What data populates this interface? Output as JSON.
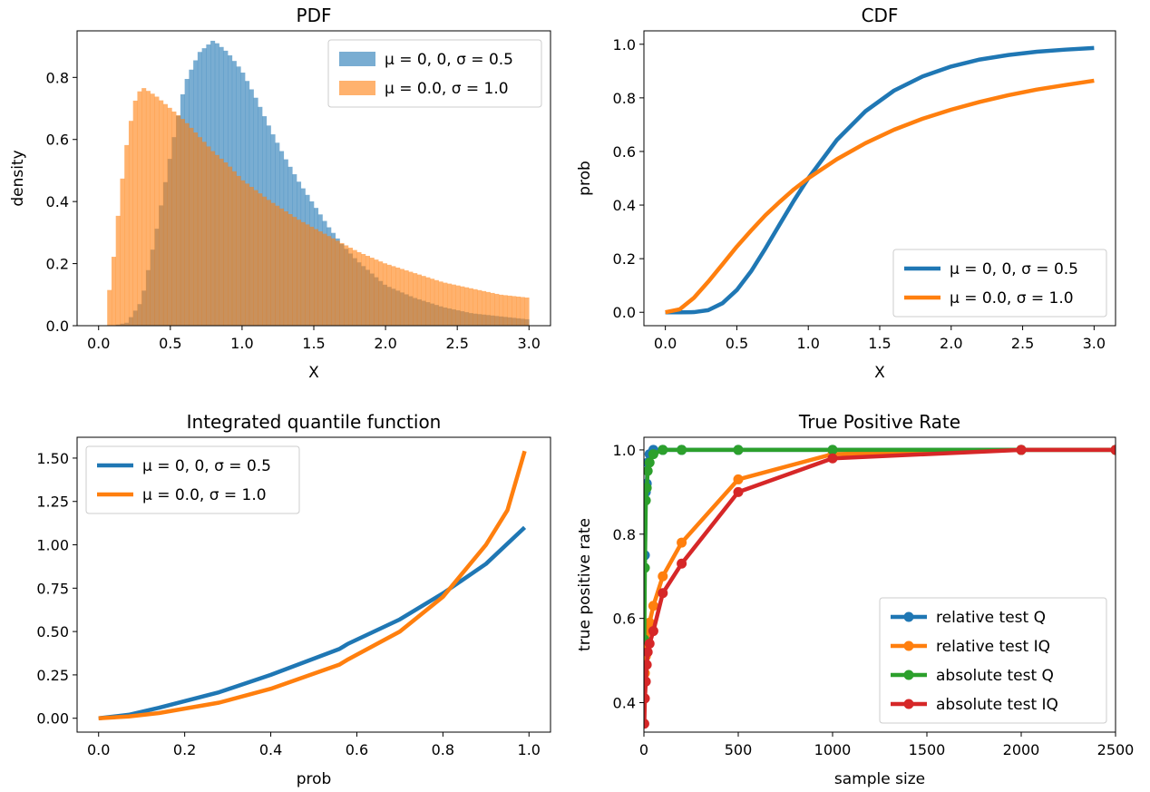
{
  "chart_data": [
    {
      "type": "bar",
      "title": "PDF",
      "xlabel": "X",
      "ylabel": "density",
      "xlim": [
        -0.15,
        3.15
      ],
      "ylim": [
        0,
        0.95
      ],
      "xticks": [
        0.0,
        0.5,
        1.0,
        1.5,
        2.0,
        2.5,
        3.0
      ],
      "xticklabels": [
        "0.0",
        "0.5",
        "1.0",
        "1.5",
        "2.0",
        "2.5",
        "3.0"
      ],
      "yticks": [
        0.0,
        0.2,
        0.4,
        0.6,
        0.8
      ],
      "yticklabels": [
        "0.0",
        "0.2",
        "0.4",
        "0.6",
        "0.8"
      ],
      "legend_position": "top-right",
      "grid": false,
      "series": [
        {
          "name": "μ = 0, 0, σ = 0.5",
          "color": "#1f77b4",
          "x": [
            0.1,
            0.2,
            0.3,
            0.4,
            0.5,
            0.6,
            0.7,
            0.8,
            0.9,
            1.0,
            1.1,
            1.2,
            1.3,
            1.4,
            1.5,
            1.6,
            1.7,
            1.8,
            1.9,
            2.0,
            2.2,
            2.4,
            2.6,
            2.8,
            3.0
          ],
          "values": [
            0.0,
            0.01,
            0.08,
            0.3,
            0.55,
            0.78,
            0.88,
            0.92,
            0.88,
            0.82,
            0.73,
            0.63,
            0.54,
            0.46,
            0.39,
            0.32,
            0.26,
            0.21,
            0.17,
            0.13,
            0.09,
            0.06,
            0.04,
            0.03,
            0.02
          ]
        },
        {
          "name": "μ = 0.0, σ = 1.0",
          "color": "#ff7f0e",
          "x": [
            0.05,
            0.1,
            0.15,
            0.2,
            0.25,
            0.3,
            0.4,
            0.5,
            0.6,
            0.7,
            0.8,
            0.9,
            1.0,
            1.2,
            1.4,
            1.6,
            1.8,
            2.0,
            2.2,
            2.4,
            2.6,
            2.8,
            3.0
          ],
          "values": [
            0.03,
            0.2,
            0.42,
            0.6,
            0.72,
            0.77,
            0.74,
            0.7,
            0.66,
            0.61,
            0.56,
            0.52,
            0.47,
            0.4,
            0.34,
            0.29,
            0.24,
            0.2,
            0.17,
            0.14,
            0.12,
            0.1,
            0.09
          ]
        }
      ]
    },
    {
      "type": "line",
      "title": "CDF",
      "xlabel": "X",
      "ylabel": "prob",
      "xlim": [
        -0.15,
        3.15
      ],
      "ylim": [
        -0.05,
        1.05
      ],
      "xticks": [
        0.0,
        0.5,
        1.0,
        1.5,
        2.0,
        2.5,
        3.0
      ],
      "xticklabels": [
        "0.0",
        "0.5",
        "1.0",
        "1.5",
        "2.0",
        "2.5",
        "3.0"
      ],
      "yticks": [
        0.0,
        0.2,
        0.4,
        0.6,
        0.8,
        1.0
      ],
      "yticklabels": [
        "0.0",
        "0.2",
        "0.4",
        "0.6",
        "0.8",
        "1.0"
      ],
      "legend_position": "lower-right",
      "grid": false,
      "series": [
        {
          "name": "μ = 0, 0, σ = 0.5",
          "color": "#1f77b4",
          "x": [
            0.0,
            0.1,
            0.2,
            0.3,
            0.4,
            0.5,
            0.6,
            0.7,
            0.8,
            0.9,
            1.0,
            1.2,
            1.4,
            1.6,
            1.8,
            2.0,
            2.2,
            2.4,
            2.6,
            2.8,
            3.0
          ],
          "values": [
            0.0,
            0.0,
            0.0006,
            0.008,
            0.034,
            0.083,
            0.153,
            0.238,
            0.328,
            0.417,
            0.5,
            0.643,
            0.75,
            0.827,
            0.88,
            0.917,
            0.943,
            0.96,
            0.972,
            0.98,
            0.986
          ]
        },
        {
          "name": "μ = 0.0, σ = 1.0",
          "color": "#ff7f0e",
          "x": [
            0.0,
            0.1,
            0.2,
            0.3,
            0.4,
            0.5,
            0.6,
            0.7,
            0.8,
            0.9,
            1.0,
            1.2,
            1.4,
            1.6,
            1.8,
            2.0,
            2.2,
            2.4,
            2.6,
            2.8,
            3.0
          ],
          "values": [
            0.0,
            0.011,
            0.054,
            0.114,
            0.179,
            0.245,
            0.305,
            0.362,
            0.412,
            0.459,
            0.5,
            0.571,
            0.631,
            0.681,
            0.722,
            0.756,
            0.785,
            0.81,
            0.831,
            0.848,
            0.864
          ]
        }
      ]
    },
    {
      "type": "line",
      "title": "Integrated quantile function",
      "xlabel": "prob",
      "ylabel": "",
      "xlim": [
        -0.05,
        1.05
      ],
      "ylim": [
        -0.08,
        1.62
      ],
      "xticks": [
        0.0,
        0.2,
        0.4,
        0.6,
        0.8,
        1.0
      ],
      "xticklabels": [
        "0.0",
        "0.2",
        "0.4",
        "0.6",
        "0.8",
        "1.0"
      ],
      "yticks": [
        0.0,
        0.25,
        0.5,
        0.75,
        1.0,
        1.25,
        1.5
      ],
      "yticklabels": [
        "0.00",
        "0.25",
        "0.50",
        "0.75",
        "1.00",
        "1.25",
        "1.50"
      ],
      "legend_position": "top-left",
      "grid": false,
      "series": [
        {
          "name": "μ = 0, 0, σ = 0.5",
          "color": "#1f77b4",
          "x": [
            0.0,
            0.07,
            0.14,
            0.28,
            0.4,
            0.56,
            0.58,
            0.7,
            0.8,
            0.9,
            0.99
          ],
          "values": [
            0.0,
            0.02,
            0.06,
            0.15,
            0.25,
            0.4,
            0.43,
            0.57,
            0.72,
            0.89,
            1.1
          ]
        },
        {
          "name": "μ = 0.0, σ = 1.0",
          "color": "#ff7f0e",
          "x": [
            0.0,
            0.07,
            0.14,
            0.28,
            0.4,
            0.56,
            0.58,
            0.7,
            0.8,
            0.9,
            0.95,
            0.99
          ],
          "values": [
            0.0,
            0.01,
            0.03,
            0.09,
            0.17,
            0.31,
            0.34,
            0.5,
            0.7,
            1.0,
            1.2,
            1.54
          ]
        }
      ]
    },
    {
      "type": "line",
      "title": "True Positive Rate",
      "xlabel": "sample size",
      "ylabel": "true positive rate",
      "xlim": [
        0,
        2500
      ],
      "ylim": [
        0.33,
        1.03
      ],
      "xticks": [
        0,
        500,
        1000,
        1500,
        2000,
        2500
      ],
      "xticklabels": [
        "0",
        "500",
        "1000",
        "1500",
        "2000",
        "2500"
      ],
      "yticks": [
        0.4,
        0.6,
        0.8,
        1.0
      ],
      "yticklabels": [
        "0.4",
        "0.6",
        "0.8",
        "1.0"
      ],
      "legend_position": "lower-right",
      "grid": false,
      "series": [
        {
          "name": "relative test Q",
          "color": "#1f77b4",
          "x": [
            5,
            10,
            15,
            20,
            30,
            50,
            100,
            200,
            500,
            1000,
            2000,
            2500
          ],
          "values": [
            0.75,
            0.9,
            0.92,
            0.97,
            0.99,
            1.0,
            1.0,
            1.0,
            1.0,
            1.0,
            1.0,
            1.0
          ]
        },
        {
          "name": "relative test IQ",
          "color": "#ff7f0e",
          "x": [
            2,
            5,
            10,
            15,
            20,
            30,
            50,
            100,
            200,
            500,
            1000,
            2000,
            2500
          ],
          "values": [
            0.41,
            0.47,
            0.51,
            0.54,
            0.57,
            0.59,
            0.63,
            0.7,
            0.78,
            0.93,
            0.99,
            1.0,
            1.0
          ]
        },
        {
          "name": "absolute test Q",
          "color": "#2ca02c",
          "x": [
            2,
            5,
            10,
            15,
            20,
            30,
            50,
            100,
            200,
            500,
            1000,
            2000,
            2500
          ],
          "values": [
            0.55,
            0.72,
            0.88,
            0.91,
            0.95,
            0.97,
            0.99,
            1.0,
            1.0,
            1.0,
            1.0,
            1.0,
            1.0
          ]
        },
        {
          "name": "absolute test IQ",
          "color": "#d62728",
          "x": [
            2,
            5,
            10,
            15,
            20,
            30,
            50,
            100,
            200,
            500,
            1000,
            2000,
            2500
          ],
          "values": [
            0.35,
            0.41,
            0.45,
            0.49,
            0.52,
            0.54,
            0.57,
            0.66,
            0.73,
            0.9,
            0.98,
            1.0,
            1.0
          ]
        }
      ]
    }
  ]
}
